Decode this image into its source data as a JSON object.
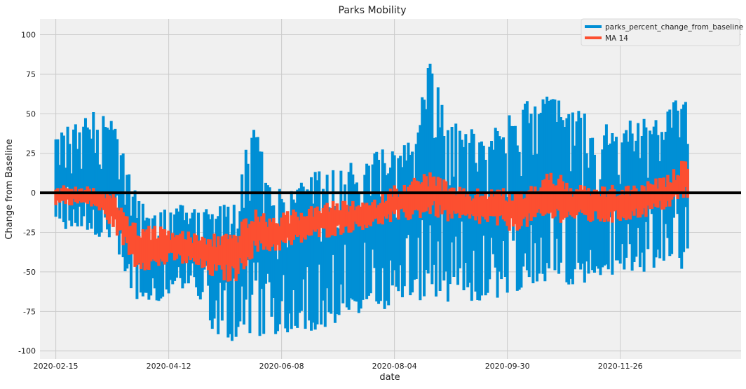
{
  "chart_data": {
    "type": "line",
    "title": "Parks Mobility",
    "xlabel": "date",
    "ylabel": "Change from Baseline",
    "x_range": [
      "2020-02-07",
      "2021-01-26"
    ],
    "ylim": [
      -105,
      110
    ],
    "x_ticks": [
      "2020-02-15",
      "2020-04-12",
      "2020-06-08",
      "2020-08-04",
      "2020-09-30",
      "2020-11-26"
    ],
    "y_ticks": [
      100,
      75,
      50,
      25,
      0,
      -25,
      -50,
      -75,
      -100
    ],
    "grid": true,
    "legend_position": "top-right",
    "reference_line": {
      "y": 0,
      "color": "#000000"
    },
    "series": [
      {
        "name": "parks_percent_change_from_baseline",
        "color": "#008fd5",
        "style": "min-max band per day",
        "x": [
          "2020-02-15",
          "2020-02-25",
          "2020-03-06",
          "2020-03-16",
          "2020-03-26",
          "2020-04-05",
          "2020-04-15",
          "2020-04-25",
          "2020-05-05",
          "2020-05-15",
          "2020-05-25",
          "2020-06-04",
          "2020-06-14",
          "2020-06-24",
          "2020-07-04",
          "2020-07-14",
          "2020-07-24",
          "2020-08-03",
          "2020-08-13",
          "2020-08-23",
          "2020-09-02",
          "2020-09-12",
          "2020-09-22",
          "2020-10-02",
          "2020-10-12",
          "2020-10-22",
          "2020-11-01",
          "2020-11-11",
          "2020-11-21",
          "2020-12-01",
          "2020-12-11",
          "2020-12-21",
          "2020-12-30"
        ],
        "upper": [
          40,
          45,
          52,
          44,
          5,
          -10,
          -5,
          -10,
          -5,
          -5,
          50,
          5,
          5,
          15,
          20,
          20,
          25,
          30,
          35,
          98,
          48,
          45,
          42,
          58,
          60,
          62,
          55,
          50,
          45,
          46,
          48,
          55,
          70
        ],
        "lower": [
          -25,
          -25,
          -28,
          -40,
          -70,
          -70,
          -62,
          -60,
          -90,
          -95,
          -92,
          -90,
          -88,
          -88,
          -85,
          -80,
          -78,
          -72,
          -70,
          -68,
          -70,
          -72,
          -70,
          -62,
          -62,
          -60,
          -58,
          -58,
          -55,
          -52,
          -50,
          -50,
          -48
        ]
      },
      {
        "name": "MA 14",
        "color": "#fc4f30",
        "style": "min-max band per day",
        "x": [
          "2020-02-15",
          "2020-02-25",
          "2020-03-06",
          "2020-03-16",
          "2020-03-26",
          "2020-04-05",
          "2020-04-15",
          "2020-04-25",
          "2020-05-05",
          "2020-05-15",
          "2020-05-25",
          "2020-06-04",
          "2020-06-14",
          "2020-06-24",
          "2020-07-04",
          "2020-07-14",
          "2020-07-24",
          "2020-08-03",
          "2020-08-13",
          "2020-08-23",
          "2020-09-02",
          "2020-09-12",
          "2020-09-22",
          "2020-10-02",
          "2020-10-12",
          "2020-10-22",
          "2020-11-01",
          "2020-11-11",
          "2020-11-21",
          "2020-12-01",
          "2020-12-11",
          "2020-12-21",
          "2020-12-30"
        ],
        "upper": [
          5,
          5,
          4,
          0,
          -18,
          -20,
          -22,
          -25,
          -25,
          -22,
          -10,
          -15,
          -10,
          -8,
          -5,
          -5,
          -5,
          5,
          10,
          15,
          5,
          2,
          5,
          2,
          5,
          18,
          5,
          5,
          5,
          5,
          8,
          12,
          26
        ],
        "lower": [
          -8,
          -8,
          -10,
          -25,
          -48,
          -50,
          -45,
          -48,
          -55,
          -58,
          -40,
          -38,
          -35,
          -30,
          -28,
          -25,
          -22,
          -20,
          -18,
          -15,
          -20,
          -20,
          -22,
          -25,
          -22,
          -20,
          -18,
          -20,
          -20,
          -18,
          -15,
          -10,
          -5
        ]
      }
    ]
  }
}
